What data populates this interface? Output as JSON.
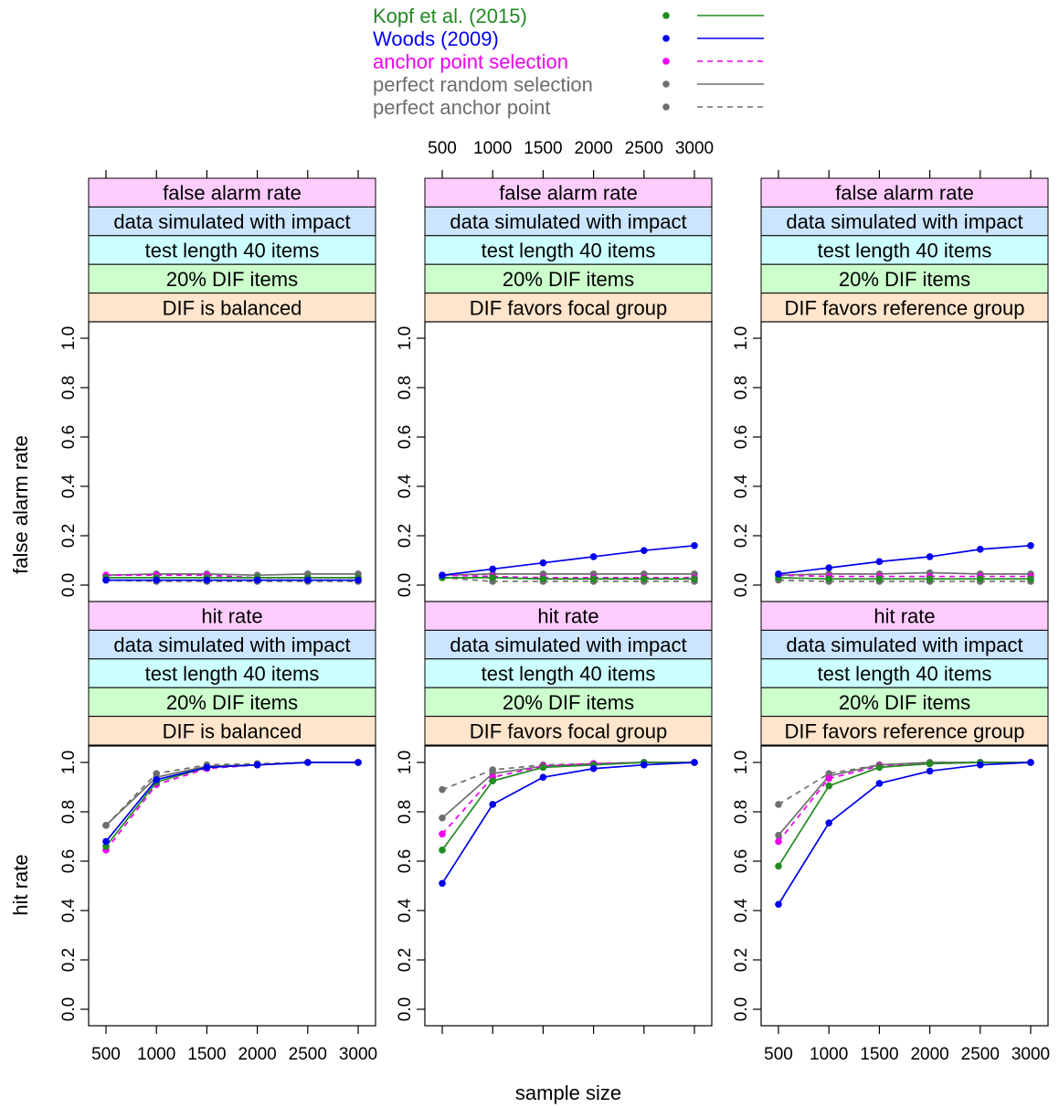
{
  "chart_data": {
    "type": "line",
    "xlabel": "sample size",
    "x": [
      500,
      1000,
      1500,
      2000,
      2500,
      3000
    ],
    "x_tick_labels": [
      "500",
      "1000",
      "1500",
      "2000",
      "2500",
      "3000"
    ],
    "ylim": [
      0,
      1
    ],
    "y_tick_labels": [
      "0.0",
      "0.2",
      "0.4",
      "0.6",
      "0.8",
      "1.0"
    ],
    "legend": {
      "placement": "top-center",
      "entries": [
        {
          "label": "Kopf et al. (2015)",
          "color": "#228B22",
          "dashed": false
        },
        {
          "label": "Woods (2009)",
          "color": "#0000EE",
          "dashed": false
        },
        {
          "label": "anchor point selection",
          "color": "#EE00EE",
          "dashed": true
        },
        {
          "label": "perfect random selection",
          "color": "#6E6E6E",
          "dashed": false
        },
        {
          "label": "perfect anchor point",
          "color": "#6E6E6E",
          "dashed": true
        }
      ]
    },
    "strip_colors": [
      "#FFCCFF",
      "#CCE5FF",
      "#CCFFFF",
      "#CCFFCC",
      "#FFE5CC"
    ],
    "rows": [
      {
        "ylabel": "false alarm rate",
        "panels": [
          {
            "strips": [
              "false alarm rate",
              "data simulated with impact",
              "test length 40 items",
              "20% DIF items",
              "DIF is balanced"
            ],
            "series": [
              {
                "name": "Kopf et al. (2015)",
                "values": [
                  0.03,
                  0.03,
                  0.03,
                  0.03,
                  0.03,
                  0.03
                ]
              },
              {
                "name": "Woods (2009)",
                "values": [
                  0.02,
                  0.02,
                  0.02,
                  0.02,
                  0.02,
                  0.02
                ]
              },
              {
                "name": "anchor point selection",
                "values": [
                  0.04,
                  0.04,
                  0.04,
                  0.03,
                  0.03,
                  0.03
                ]
              },
              {
                "name": "perfect random selection",
                "values": [
                  0.04,
                  0.045,
                  0.045,
                  0.04,
                  0.045,
                  0.045
                ]
              },
              {
                "name": "perfect anchor point",
                "values": [
                  0.02,
                  0.015,
                  0.015,
                  0.015,
                  0.015,
                  0.015
                ]
              }
            ]
          },
          {
            "strips": [
              "false alarm rate",
              "data simulated with impact",
              "test length 40 items",
              "20% DIF items",
              "DIF favors focal group"
            ],
            "series": [
              {
                "name": "Kopf et al. (2015)",
                "values": [
                  0.03,
                  0.03,
                  0.025,
                  0.025,
                  0.025,
                  0.025
                ]
              },
              {
                "name": "Woods (2009)",
                "values": [
                  0.04,
                  0.065,
                  0.09,
                  0.115,
                  0.14,
                  0.16
                ]
              },
              {
                "name": "anchor point selection",
                "values": [
                  0.04,
                  0.035,
                  0.03,
                  0.03,
                  0.03,
                  0.03
                ]
              },
              {
                "name": "perfect random selection",
                "values": [
                  0.04,
                  0.045,
                  0.045,
                  0.045,
                  0.045,
                  0.045
                ]
              },
              {
                "name": "perfect anchor point",
                "values": [
                  0.03,
                  0.015,
                  0.015,
                  0.015,
                  0.015,
                  0.015
                ]
              }
            ]
          },
          {
            "strips": [
              "false alarm rate",
              "data simulated with impact",
              "test length 40 items",
              "20% DIF items",
              "DIF favors reference group"
            ],
            "series": [
              {
                "name": "Kopf et al. (2015)",
                "values": [
                  0.03,
                  0.025,
                  0.025,
                  0.025,
                  0.025,
                  0.025
                ]
              },
              {
                "name": "Woods (2009)",
                "values": [
                  0.045,
                  0.07,
                  0.095,
                  0.115,
                  0.145,
                  0.16
                ]
              },
              {
                "name": "anchor point selection",
                "values": [
                  0.04,
                  0.035,
                  0.035,
                  0.035,
                  0.035,
                  0.035
                ]
              },
              {
                "name": "perfect random selection",
                "values": [
                  0.04,
                  0.045,
                  0.045,
                  0.05,
                  0.045,
                  0.045
                ]
              },
              {
                "name": "perfect anchor point",
                "values": [
                  0.02,
                  0.015,
                  0.015,
                  0.015,
                  0.015,
                  0.015
                ]
              }
            ]
          }
        ]
      },
      {
        "ylabel": "hit rate",
        "panels": [
          {
            "strips": [
              "hit rate",
              "data simulated with impact",
              "test length 40 items",
              "20% DIF items",
              "DIF is balanced"
            ],
            "series": [
              {
                "name": "Kopf et al. (2015)",
                "values": [
                  0.66,
                  0.92,
                  0.98,
                  0.99,
                  1.0,
                  1.0
                ]
              },
              {
                "name": "Woods (2009)",
                "values": [
                  0.68,
                  0.93,
                  0.98,
                  0.99,
                  1.0,
                  1.0
                ]
              },
              {
                "name": "anchor point selection",
                "values": [
                  0.645,
                  0.91,
                  0.975,
                  0.99,
                  1.0,
                  1.0
                ]
              },
              {
                "name": "perfect random selection",
                "values": [
                  0.745,
                  0.94,
                  0.985,
                  0.99,
                  1.0,
                  1.0
                ]
              },
              {
                "name": "perfect anchor point",
                "values": [
                  0.745,
                  0.955,
                  0.99,
                  0.995,
                  1.0,
                  1.0
                ]
              }
            ]
          },
          {
            "strips": [
              "hit rate",
              "data simulated with impact",
              "test length 40 items",
              "20% DIF items",
              "DIF favors focal group"
            ],
            "series": [
              {
                "name": "Kopf et al. (2015)",
                "values": [
                  0.645,
                  0.925,
                  0.98,
                  0.99,
                  1.0,
                  1.0
                ]
              },
              {
                "name": "Woods (2009)",
                "values": [
                  0.51,
                  0.83,
                  0.94,
                  0.975,
                  0.99,
                  1.0
                ]
              },
              {
                "name": "anchor point selection",
                "values": [
                  0.71,
                  0.94,
                  0.985,
                  0.995,
                  1.0,
                  1.0
                ]
              },
              {
                "name": "perfect random selection",
                "values": [
                  0.775,
                  0.955,
                  0.985,
                  0.995,
                  1.0,
                  1.0
                ]
              },
              {
                "name": "perfect anchor point",
                "values": [
                  0.89,
                  0.97,
                  0.99,
                  0.995,
                  1.0,
                  1.0
                ]
              }
            ]
          },
          {
            "strips": [
              "hit rate",
              "data simulated with impact",
              "test length 40 items",
              "20% DIF items",
              "DIF favors reference group"
            ],
            "series": [
              {
                "name": "Kopf et al. (2015)",
                "values": [
                  0.58,
                  0.905,
                  0.98,
                  0.995,
                  1.0,
                  1.0
                ]
              },
              {
                "name": "Woods (2009)",
                "values": [
                  0.425,
                  0.755,
                  0.915,
                  0.965,
                  0.99,
                  1.0
                ]
              },
              {
                "name": "anchor point selection",
                "values": [
                  0.68,
                  0.935,
                  0.985,
                  0.995,
                  1.0,
                  1.0
                ]
              },
              {
                "name": "perfect random selection",
                "values": [
                  0.705,
                  0.945,
                  0.99,
                  1.0,
                  1.0,
                  1.0
                ]
              },
              {
                "name": "perfect anchor point",
                "values": [
                  0.83,
                  0.955,
                  0.99,
                  1.0,
                  1.0,
                  1.0
                ]
              }
            ]
          }
        ]
      }
    ]
  }
}
